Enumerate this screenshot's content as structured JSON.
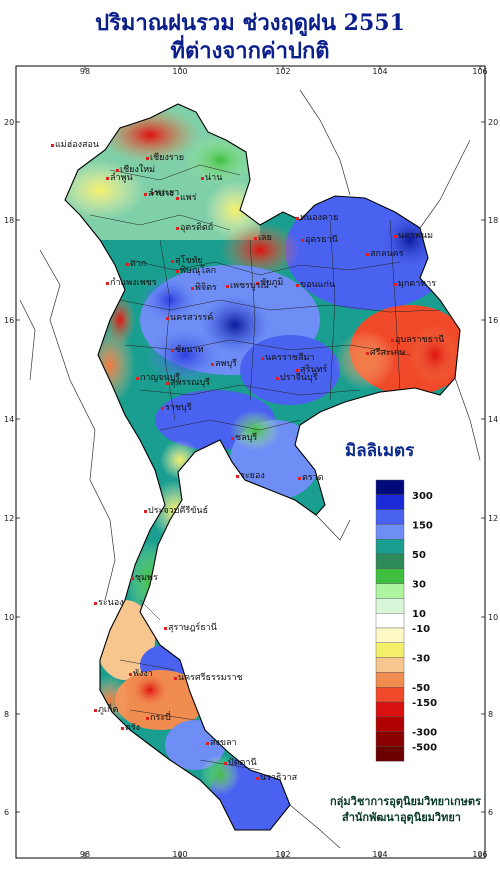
{
  "title_line1": "ปริมาณฝนรวม ช่วงฤดูฝน 2551",
  "title_line2": "ที่ต่างจากค่าปกติ",
  "legend": {
    "unit": "มิลลิเมตร",
    "tick_labels": [
      "300",
      "150",
      "50",
      "30",
      "10",
      "-10",
      "-30",
      "-50",
      "-150",
      "-300",
      "-500"
    ],
    "colors": [
      "#000a7a",
      "#1a2ad6",
      "#4a62f0",
      "#6f8ef5",
      "#1a9e90",
      "#2f8a5a",
      "#3fbf3f",
      "#aef5a0",
      "#d8f7d8",
      "#ffffff",
      "#fff9c8",
      "#f5f06a",
      "#f7c58e",
      "#f08c50",
      "#f04a2a",
      "#d81010",
      "#b00000",
      "#8a0000",
      "#6a0000"
    ]
  },
  "axes": {
    "lon_labels": [
      "98",
      "100",
      "102",
      "104",
      "106"
    ],
    "lat_labels": [
      "20",
      "18",
      "16",
      "14",
      "12",
      "10",
      "8",
      "6"
    ]
  },
  "provinces": [
    "เชียงราย",
    "แม่ฮ่องสอน",
    "เชียงใหม่",
    "ลำพูน",
    "พะเยา",
    "น่าน",
    "ลำปาง",
    "แพร่",
    "อุตรดิตถ์",
    "หนองคาย",
    "เลย",
    "อุดรธานี",
    "สกลนคร",
    "นครพนม",
    "มุกดาหาร",
    "ขอนแก่น",
    "ชัยภูมิ",
    "ตาก",
    "สุโขทัย",
    "พิษณุโลก",
    "กำแพงเพชร",
    "พิจิตร",
    "เพชรบูรณ์",
    "นครสวรรค์",
    "อุบลราชธานี",
    "ศรีสะเกษ",
    "สุรินทร์",
    "ชัยนาท",
    "ลพบุรี",
    "นครราชสีมา",
    "กาญจนบุรี",
    "สุพรรณบุรี",
    "ปราจีนบุรี",
    "ราชบุรี",
    "ชลบุรี",
    "ระยอง",
    "ตราด",
    "ประจวบคีรีขันธ์",
    "ชุมพร",
    "ระนอง",
    "สุราษฎร์ธานี",
    "นครศรีธรรมราช",
    "พังงา",
    "ภูเก็ต",
    "กระบี่",
    "ตรัง",
    "สงขลา",
    "ปัตตานี",
    "นราธิวาส"
  ],
  "credit_line1": "กลุ่มวิชาการอุตุนิยมวิทยาเกษตร",
  "credit_line2": "สำนักพัฒนาอุตุนิยมวิทยา"
}
